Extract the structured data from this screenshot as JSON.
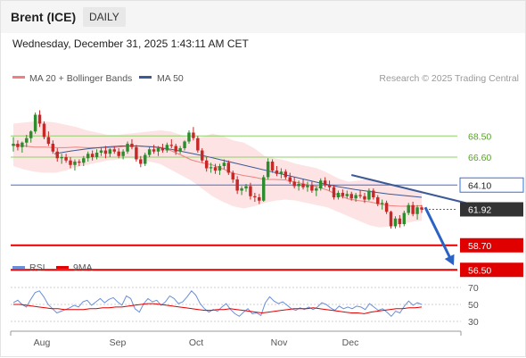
{
  "header": {
    "instrument": "Brent (ICE)",
    "timeframe": "DAILY"
  },
  "datetime": "Wednesday, December 31, 2025 1:43:11 AM CET",
  "legend": {
    "bollinger": {
      "label": "MA 20 + Bollinger Bands",
      "color": "#f08080"
    },
    "ma50": {
      "label": "MA 50",
      "color": "#3c5a96"
    }
  },
  "credit": "Research © 2025 Trading Central",
  "chart_data": {
    "type": "candlestick",
    "x_ticks": [
      "Aug",
      "Sep",
      "Oct",
      "Nov",
      "Dec"
    ],
    "price_ylim": [
      56.0,
      71.0
    ],
    "candles": [
      {
        "o": 67.6,
        "h": 68.4,
        "l": 67.1,
        "c": 67.8
      },
      {
        "o": 67.8,
        "h": 68.1,
        "l": 67.2,
        "c": 67.5
      },
      {
        "o": 67.5,
        "h": 68.0,
        "l": 67.0,
        "c": 67.9
      },
      {
        "o": 67.9,
        "h": 68.6,
        "l": 67.5,
        "c": 68.3
      },
      {
        "o": 68.3,
        "h": 69.0,
        "l": 67.9,
        "c": 68.9
      },
      {
        "o": 68.9,
        "h": 70.6,
        "l": 68.7,
        "c": 70.4
      },
      {
        "o": 70.4,
        "h": 70.8,
        "l": 69.3,
        "c": 69.6
      },
      {
        "o": 69.6,
        "h": 69.8,
        "l": 68.2,
        "c": 68.4
      },
      {
        "o": 68.4,
        "h": 68.9,
        "l": 67.6,
        "c": 67.8
      },
      {
        "o": 67.8,
        "h": 68.1,
        "l": 66.9,
        "c": 67.1
      },
      {
        "o": 67.1,
        "h": 67.4,
        "l": 66.2,
        "c": 66.5
      },
      {
        "o": 66.5,
        "h": 66.9,
        "l": 66.0,
        "c": 66.6
      },
      {
        "o": 66.6,
        "h": 66.9,
        "l": 66.1,
        "c": 66.3
      },
      {
        "o": 66.3,
        "h": 66.6,
        "l": 65.6,
        "c": 65.9
      },
      {
        "o": 65.9,
        "h": 66.4,
        "l": 65.4,
        "c": 66.2
      },
      {
        "o": 66.2,
        "h": 66.4,
        "l": 65.8,
        "c": 66.1
      },
      {
        "o": 66.1,
        "h": 66.7,
        "l": 65.8,
        "c": 66.5
      },
      {
        "o": 66.5,
        "h": 67.1,
        "l": 66.2,
        "c": 66.9
      },
      {
        "o": 66.9,
        "h": 67.2,
        "l": 66.3,
        "c": 66.6
      },
      {
        "o": 66.6,
        "h": 67.3,
        "l": 66.4,
        "c": 67.0
      },
      {
        "o": 67.0,
        "h": 67.5,
        "l": 66.7,
        "c": 67.2
      },
      {
        "o": 67.2,
        "h": 67.6,
        "l": 66.5,
        "c": 66.9
      },
      {
        "o": 66.9,
        "h": 67.4,
        "l": 66.6,
        "c": 67.3
      },
      {
        "o": 67.3,
        "h": 67.6,
        "l": 66.9,
        "c": 67.1
      },
      {
        "o": 67.1,
        "h": 67.4,
        "l": 66.5,
        "c": 66.7
      },
      {
        "o": 66.7,
        "h": 67.3,
        "l": 66.4,
        "c": 67.1
      },
      {
        "o": 67.1,
        "h": 68.0,
        "l": 66.9,
        "c": 67.8
      },
      {
        "o": 67.8,
        "h": 68.2,
        "l": 67.3,
        "c": 67.5
      },
      {
        "o": 67.5,
        "h": 67.7,
        "l": 66.2,
        "c": 66.4
      },
      {
        "o": 66.4,
        "h": 66.7,
        "l": 65.7,
        "c": 66.0
      },
      {
        "o": 66.0,
        "h": 67.0,
        "l": 65.8,
        "c": 66.8
      },
      {
        "o": 66.8,
        "h": 67.5,
        "l": 66.6,
        "c": 67.3
      },
      {
        "o": 67.3,
        "h": 67.7,
        "l": 66.9,
        "c": 67.1
      },
      {
        "o": 67.1,
        "h": 67.6,
        "l": 66.7,
        "c": 67.4
      },
      {
        "o": 67.4,
        "h": 67.8,
        "l": 67.0,
        "c": 67.2
      },
      {
        "o": 67.2,
        "h": 67.9,
        "l": 67.0,
        "c": 67.7
      },
      {
        "o": 67.7,
        "h": 68.2,
        "l": 67.4,
        "c": 67.6
      },
      {
        "o": 67.6,
        "h": 67.8,
        "l": 66.8,
        "c": 67.1
      },
      {
        "o": 67.1,
        "h": 67.6,
        "l": 66.9,
        "c": 67.4
      },
      {
        "o": 67.4,
        "h": 68.1,
        "l": 67.2,
        "c": 68.0
      },
      {
        "o": 68.0,
        "h": 69.0,
        "l": 67.8,
        "c": 68.8
      },
      {
        "o": 68.8,
        "h": 69.3,
        "l": 68.1,
        "c": 68.3
      },
      {
        "o": 68.3,
        "h": 68.5,
        "l": 67.0,
        "c": 67.2
      },
      {
        "o": 67.2,
        "h": 67.4,
        "l": 66.1,
        "c": 66.3
      },
      {
        "o": 66.3,
        "h": 66.6,
        "l": 65.3,
        "c": 65.6
      },
      {
        "o": 65.6,
        "h": 66.1,
        "l": 65.2,
        "c": 65.7
      },
      {
        "o": 65.7,
        "h": 66.0,
        "l": 65.1,
        "c": 65.4
      },
      {
        "o": 65.4,
        "h": 66.0,
        "l": 65.0,
        "c": 65.8
      },
      {
        "o": 65.8,
        "h": 66.4,
        "l": 65.5,
        "c": 66.1
      },
      {
        "o": 66.1,
        "h": 66.3,
        "l": 65.0,
        "c": 65.2
      },
      {
        "o": 65.2,
        "h": 65.4,
        "l": 64.3,
        "c": 64.6
      },
      {
        "o": 64.6,
        "h": 64.9,
        "l": 63.3,
        "c": 63.6
      },
      {
        "o": 63.6,
        "h": 64.0,
        "l": 63.2,
        "c": 63.8
      },
      {
        "o": 63.8,
        "h": 64.2,
        "l": 63.5,
        "c": 64.0
      },
      {
        "o": 64.0,
        "h": 64.3,
        "l": 62.8,
        "c": 63.1
      },
      {
        "o": 63.1,
        "h": 63.4,
        "l": 62.6,
        "c": 63.0
      },
      {
        "o": 63.0,
        "h": 63.3,
        "l": 62.4,
        "c": 62.7
      },
      {
        "o": 62.7,
        "h": 65.0,
        "l": 62.6,
        "c": 64.8
      },
      {
        "o": 64.8,
        "h": 66.5,
        "l": 64.6,
        "c": 66.2
      },
      {
        "o": 66.2,
        "h": 66.4,
        "l": 65.2,
        "c": 65.4
      },
      {
        "o": 65.4,
        "h": 65.8,
        "l": 64.9,
        "c": 65.1
      },
      {
        "o": 65.1,
        "h": 65.6,
        "l": 64.7,
        "c": 65.3
      },
      {
        "o": 65.3,
        "h": 65.5,
        "l": 64.6,
        "c": 64.8
      },
      {
        "o": 64.8,
        "h": 65.2,
        "l": 64.2,
        "c": 64.4
      },
      {
        "o": 64.4,
        "h": 64.8,
        "l": 63.8,
        "c": 64.0
      },
      {
        "o": 64.0,
        "h": 64.5,
        "l": 63.6,
        "c": 64.2
      },
      {
        "o": 64.2,
        "h": 64.6,
        "l": 63.7,
        "c": 63.9
      },
      {
        "o": 63.9,
        "h": 64.4,
        "l": 63.5,
        "c": 64.1
      },
      {
        "o": 64.1,
        "h": 64.4,
        "l": 63.4,
        "c": 63.6
      },
      {
        "o": 63.6,
        "h": 64.0,
        "l": 63.1,
        "c": 63.8
      },
      {
        "o": 63.8,
        "h": 64.7,
        "l": 63.6,
        "c": 64.5
      },
      {
        "o": 64.5,
        "h": 64.8,
        "l": 63.9,
        "c": 64.1
      },
      {
        "o": 64.1,
        "h": 64.5,
        "l": 63.6,
        "c": 63.9
      },
      {
        "o": 63.9,
        "h": 64.1,
        "l": 62.8,
        "c": 63.0
      },
      {
        "o": 63.0,
        "h": 63.6,
        "l": 62.8,
        "c": 63.4
      },
      {
        "o": 63.4,
        "h": 63.7,
        "l": 62.9,
        "c": 63.1
      },
      {
        "o": 63.1,
        "h": 63.6,
        "l": 62.9,
        "c": 63.3
      },
      {
        "o": 63.3,
        "h": 63.5,
        "l": 62.7,
        "c": 62.9
      },
      {
        "o": 62.9,
        "h": 63.4,
        "l": 62.6,
        "c": 63.2
      },
      {
        "o": 63.2,
        "h": 63.6,
        "l": 62.9,
        "c": 63.1
      },
      {
        "o": 63.1,
        "h": 63.4,
        "l": 62.5,
        "c": 62.8
      },
      {
        "o": 62.8,
        "h": 63.8,
        "l": 62.7,
        "c": 63.6
      },
      {
        "o": 63.6,
        "h": 63.8,
        "l": 62.8,
        "c": 63.0
      },
      {
        "o": 63.0,
        "h": 63.2,
        "l": 62.2,
        "c": 62.4
      },
      {
        "o": 62.4,
        "h": 62.8,
        "l": 61.9,
        "c": 62.5
      },
      {
        "o": 62.5,
        "h": 62.7,
        "l": 61.5,
        "c": 61.7
      },
      {
        "o": 61.7,
        "h": 61.8,
        "l": 60.2,
        "c": 60.4
      },
      {
        "o": 60.4,
        "h": 61.3,
        "l": 60.2,
        "c": 61.1
      },
      {
        "o": 61.1,
        "h": 61.4,
        "l": 60.3,
        "c": 60.6
      },
      {
        "o": 60.6,
        "h": 61.8,
        "l": 60.4,
        "c": 61.6
      },
      {
        "o": 61.6,
        "h": 62.5,
        "l": 61.4,
        "c": 62.3
      },
      {
        "o": 62.3,
        "h": 62.6,
        "l": 61.3,
        "c": 61.5
      },
      {
        "o": 61.5,
        "h": 62.3,
        "l": 61.0,
        "c": 62.1
      },
      {
        "o": 62.1,
        "h": 62.3,
        "l": 61.6,
        "c": 61.9
      }
    ],
    "bollinger": {
      "upper": [
        69.6,
        69.7,
        69.8,
        69.8,
        69.7,
        69.5,
        69.3,
        69.0,
        68.8,
        68.6,
        68.6,
        68.7,
        68.8,
        68.9,
        69.0,
        68.9,
        68.6,
        68.2,
        68.4,
        68.7,
        68.5,
        68.1,
        67.9,
        67.4,
        66.7,
        66.5,
        66.3,
        66.0,
        65.8,
        65.6,
        65.2,
        64.7,
        64.4,
        64.5,
        64.7,
        64.5,
        64.1,
        63.8,
        63.6,
        63.6
      ],
      "lower": [
        65.8,
        65.5,
        65.3,
        65.2,
        65.2,
        65.4,
        65.7,
        65.9,
        66.1,
        66.3,
        66.4,
        66.5,
        66.4,
        66.2,
        66.0,
        65.5,
        65.0,
        64.5,
        63.8,
        63.1,
        62.6,
        62.2,
        62.0,
        62.2,
        62.5,
        62.7,
        62.8,
        62.7,
        62.5,
        62.3,
        62.1,
        61.7,
        61.3,
        60.9,
        60.5,
        60.3,
        60.4,
        60.6,
        60.8,
        60.9
      ],
      "middle": [
        67.7,
        67.6,
        67.5,
        67.5,
        67.45,
        67.45,
        67.5,
        67.45,
        67.45,
        67.45,
        67.5,
        67.6,
        67.6,
        67.55,
        67.5,
        67.2,
        66.8,
        66.35,
        66.1,
        65.9,
        65.55,
        65.15,
        64.95,
        64.8,
        64.6,
        64.6,
        64.55,
        64.35,
        64.15,
        63.95,
        63.65,
        63.2,
        62.85,
        62.7,
        62.6,
        62.4,
        62.25,
        62.2,
        62.2,
        62.25
      ]
    },
    "ma50": [
      66.9,
      67.15,
      67.35,
      67.5,
      67.6,
      67.6,
      67.5,
      67.3,
      67.0,
      66.7,
      66.35,
      66.0,
      65.65,
      65.3,
      64.95,
      64.6,
      64.25,
      63.95,
      63.7,
      63.5,
      63.3,
      63.15,
      63.0
    ],
    "levels": [
      {
        "value": 68.5,
        "label": "68.50",
        "kind": "resistance"
      },
      {
        "value": 66.6,
        "label": "66.60",
        "kind": "resistance"
      },
      {
        "value": 64.1,
        "label": "64.10",
        "kind": "pivot"
      },
      {
        "value": 61.92,
        "label": "61.92",
        "kind": "last"
      },
      {
        "value": 58.7,
        "label": "58.70",
        "kind": "support"
      },
      {
        "value": 56.5,
        "label": "56.50",
        "kind": "support"
      }
    ],
    "trendline": {
      "from_candle": 77,
      "from_value": 65.0,
      "to_candle": 104,
      "to_value": 62.4
    },
    "projection": {
      "from_value": 62.1,
      "to_value": 56.9
    },
    "rsi": {
      "ticks": [
        70,
        50,
        30
      ],
      "ylim": [
        25,
        75
      ],
      "legend": {
        "rsi": "RSI",
        "ma": "9MA"
      },
      "rsi_values": [
        52,
        55,
        50,
        47,
        56,
        64,
        66,
        59,
        50,
        45,
        40,
        42,
        44,
        46,
        49,
        47,
        53,
        55,
        49,
        53,
        57,
        52,
        56,
        58,
        53,
        49,
        60,
        57,
        45,
        41,
        51,
        57,
        53,
        55,
        49,
        53,
        60,
        57,
        51,
        53,
        59,
        66,
        61,
        51,
        45,
        41,
        44,
        42,
        47,
        51,
        44,
        39,
        36,
        41,
        45,
        39,
        40,
        37,
        52,
        59,
        54,
        51,
        53,
        49,
        45,
        43,
        46,
        44,
        47,
        44,
        47,
        52,
        50,
        46,
        43,
        48,
        45,
        47,
        45,
        48,
        47,
        44,
        51,
        47,
        43,
        45,
        41,
        36,
        42,
        40,
        48,
        54,
        49,
        52,
        50
      ],
      "ma_values": [
        50,
        50,
        49,
        48,
        47,
        46,
        45,
        45,
        44,
        44,
        44,
        44,
        45,
        45,
        46,
        46,
        47,
        47,
        48,
        49,
        50,
        51,
        51,
        50,
        49,
        48,
        47,
        46,
        45,
        44,
        43,
        43,
        44,
        44,
        45,
        44,
        43,
        42,
        41,
        40,
        41,
        42,
        43,
        44,
        45,
        45,
        45,
        46,
        45,
        44,
        43,
        42,
        41,
        40,
        40,
        39,
        41,
        42,
        43,
        44,
        45,
        45,
        46,
        46,
        47
      ]
    }
  }
}
